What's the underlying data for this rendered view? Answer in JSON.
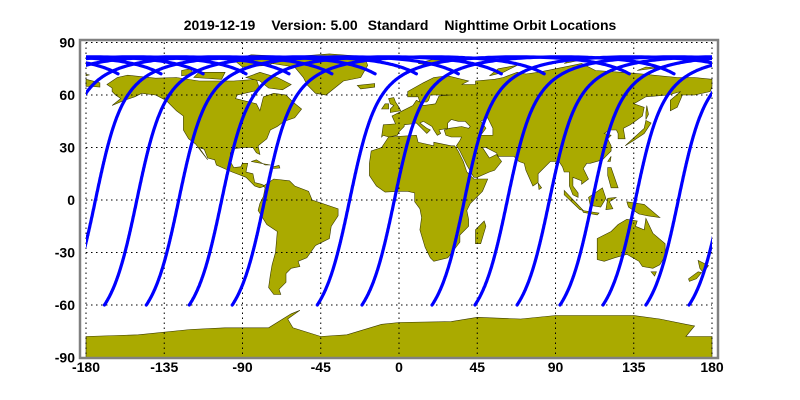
{
  "title": {
    "date": "2019-12-19",
    "version": "Version: 5.00",
    "product": "Standard",
    "subject": "Nighttime Orbit Locations"
  },
  "map": {
    "projection": "equirectangular",
    "lon_range": [
      -180,
      180
    ],
    "lat_range": [
      -90,
      90
    ],
    "grid": true,
    "x_ticks": [
      "-180",
      "-135",
      "-90",
      "-45",
      "0",
      "45",
      "90",
      "135",
      "180"
    ],
    "y_ticks": [
      "90",
      "60",
      "30",
      "0",
      "-30",
      "-60",
      "-90"
    ],
    "colors": {
      "land": "#aaaa00",
      "coast": "#3a3a00",
      "orbit": "#0000ff",
      "frame": "#808080",
      "grid": "#000000"
    },
    "orbit_tracks": {
      "description_start_lat": -60,
      "start_longitudes": [
        -169.4,
        -145.3,
        -120.6,
        -95.9,
        -47.0,
        -21.3,
        19.0,
        43.7,
        67.9,
        92.6,
        117.3,
        142.0,
        166.8
      ]
    }
  }
}
